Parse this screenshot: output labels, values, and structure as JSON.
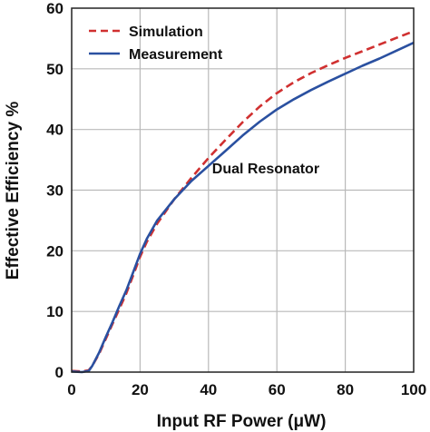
{
  "chart_data": {
    "type": "line",
    "title": "",
    "xlabel": "Input RF Power (μW)",
    "ylabel": "Effective  Efficiency %",
    "xlim": [
      0,
      100
    ],
    "ylim": [
      0,
      60
    ],
    "xticks": [
      0,
      20,
      40,
      60,
      80,
      100
    ],
    "yticks": [
      0,
      10,
      20,
      30,
      40,
      50,
      60
    ],
    "grid": true,
    "legend_position": "top-left",
    "annotations": [
      {
        "text": "Dual Resonator",
        "x": 40,
        "y": 33.5
      }
    ],
    "series": [
      {
        "name": "Simulation",
        "style": "dashed",
        "color": "#d03030",
        "points": [
          [
            0,
            0.2
          ],
          [
            3,
            0.1
          ],
          [
            5,
            0.3
          ],
          [
            6,
            1
          ],
          [
            8,
            3
          ],
          [
            10,
            5.5
          ],
          [
            12,
            8
          ],
          [
            14,
            10.5
          ],
          [
            16,
            13
          ],
          [
            18,
            16
          ],
          [
            20,
            19
          ],
          [
            22,
            21.5
          ],
          [
            25,
            24.5
          ],
          [
            30,
            28.5
          ],
          [
            35,
            32
          ],
          [
            40,
            35.3
          ],
          [
            45,
            38.3
          ],
          [
            50,
            41.2
          ],
          [
            55,
            43.8
          ],
          [
            60,
            46
          ],
          [
            65,
            47.8
          ],
          [
            70,
            49.3
          ],
          [
            75,
            50.6
          ],
          [
            80,
            51.8
          ],
          [
            85,
            52.9
          ],
          [
            90,
            54
          ],
          [
            95,
            55.1
          ],
          [
            100,
            56.2
          ]
        ]
      },
      {
        "name": "Measurement",
        "style": "solid",
        "color": "#2a50a0",
        "points": [
          [
            0,
            0.1
          ],
          [
            3,
            0
          ],
          [
            5,
            0.2
          ],
          [
            6,
            1
          ],
          [
            8,
            3.2
          ],
          [
            10,
            5.8
          ],
          [
            12,
            8.3
          ],
          [
            14,
            11
          ],
          [
            16,
            13.5
          ],
          [
            18,
            16.5
          ],
          [
            20,
            19.5
          ],
          [
            22,
            22
          ],
          [
            25,
            25
          ],
          [
            30,
            28.5
          ],
          [
            35,
            31.5
          ],
          [
            40,
            34
          ],
          [
            45,
            36.5
          ],
          [
            50,
            39
          ],
          [
            55,
            41.3
          ],
          [
            60,
            43.3
          ],
          [
            65,
            45
          ],
          [
            70,
            46.5
          ],
          [
            75,
            47.9
          ],
          [
            80,
            49.2
          ],
          [
            85,
            50.5
          ],
          [
            90,
            51.7
          ],
          [
            95,
            53
          ],
          [
            100,
            54.3
          ]
        ]
      }
    ]
  }
}
